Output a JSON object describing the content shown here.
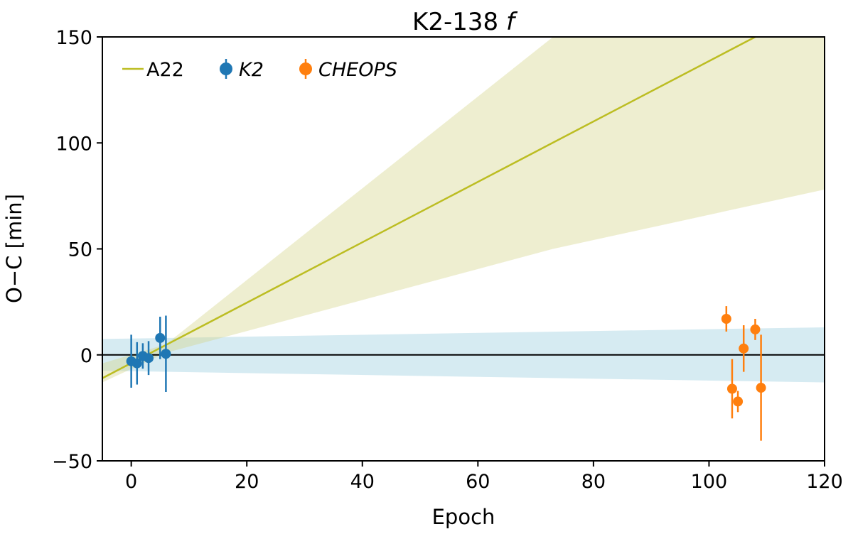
{
  "chart_data": {
    "type": "scatter",
    "title": "K2-138",
    "title_italic": "f",
    "xlabel": "Epoch",
    "ylabel": "O−C [min]",
    "xlim": [
      -5,
      120
    ],
    "ylim": [
      -50,
      150
    ],
    "xticks": [
      0,
      20,
      40,
      60,
      80,
      100,
      120
    ],
    "yticks": [
      -50,
      0,
      50,
      100,
      150
    ],
    "xtick_labels": [
      "0",
      "20",
      "40",
      "60",
      "80",
      "100",
      "120"
    ],
    "ytick_labels": [
      "−50",
      "0",
      "50",
      "100",
      "150"
    ],
    "grid": false,
    "legend_placement": "top-left",
    "zero_line": {
      "y": 0,
      "color": "#000000"
    },
    "band_k2": {
      "color": "#add8e6",
      "x": [
        -5,
        120
      ],
      "upper": [
        7.5,
        13
      ],
      "lower": [
        -7.5,
        -13
      ]
    },
    "band_a22": {
      "color": "#d4d48a",
      "x": [
        -5,
        6,
        73,
        120
      ],
      "upper": [
        -4,
        5,
        150,
        150
      ],
      "lower": [
        -13,
        1,
        50,
        78
      ]
    },
    "line_a22": {
      "name": "A22",
      "color": "#bcbd22",
      "x": [
        -5,
        108
      ],
      "y": [
        -11,
        150
      ]
    },
    "series": [
      {
        "name": "K2",
        "color": "#1f77b4",
        "points": [
          {
            "x": 0,
            "y": -3,
            "err": 12.5
          },
          {
            "x": 1,
            "y": -4,
            "err": 10
          },
          {
            "x": 2,
            "y": -0.5,
            "err": 6
          },
          {
            "x": 3,
            "y": -1.5,
            "err": 8
          },
          {
            "x": 5,
            "y": 8,
            "err": 10
          },
          {
            "x": 6,
            "y": 0.5,
            "err": 18
          }
        ]
      },
      {
        "name": "CHEOPS",
        "color": "#ff7f0e",
        "points": [
          {
            "x": 103,
            "y": 17,
            "err": 6
          },
          {
            "x": 104,
            "y": -16,
            "err": 14
          },
          {
            "x": 105,
            "y": -22,
            "err": 5
          },
          {
            "x": 106,
            "y": 3,
            "err": 11
          },
          {
            "x": 108,
            "y": 12,
            "err": 5
          },
          {
            "x": 109,
            "y": -15.5,
            "err": 25
          }
        ]
      }
    ],
    "legend": [
      {
        "label": "A22",
        "italic": false,
        "kind": "line",
        "color": "#bcbd22"
      },
      {
        "label": "K2",
        "italic": true,
        "kind": "errorbar",
        "color": "#1f77b4"
      },
      {
        "label": "CHEOPS",
        "italic": true,
        "kind": "errorbar",
        "color": "#ff7f0e"
      }
    ]
  }
}
